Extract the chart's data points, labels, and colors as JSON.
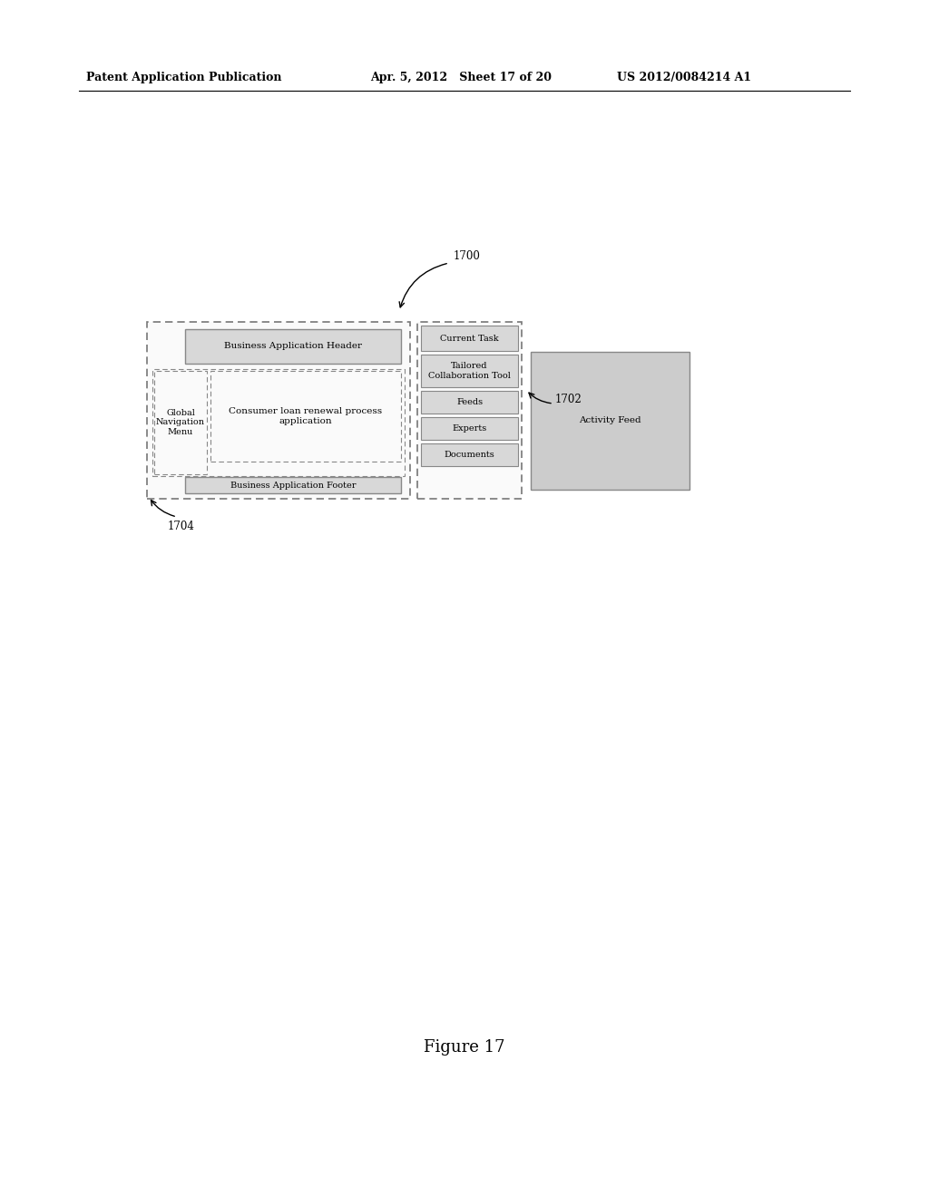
{
  "bg_color": "#ffffff",
  "header_text_left": "Patent Application Publication",
  "header_text_mid": "Apr. 5, 2012   Sheet 17 of 20",
  "header_text_right": "US 2012/0084214 A1",
  "figure_label": "Figure 17",
  "label_1700": "1700",
  "label_1702": "1702",
  "label_1704": "1704",
  "box_fill": "#d8d8d8",
  "box_edge": "#888888",
  "outer_fill": "#ffffff",
  "outer_edge": "#888888",
  "activity_fill": "#cccccc"
}
